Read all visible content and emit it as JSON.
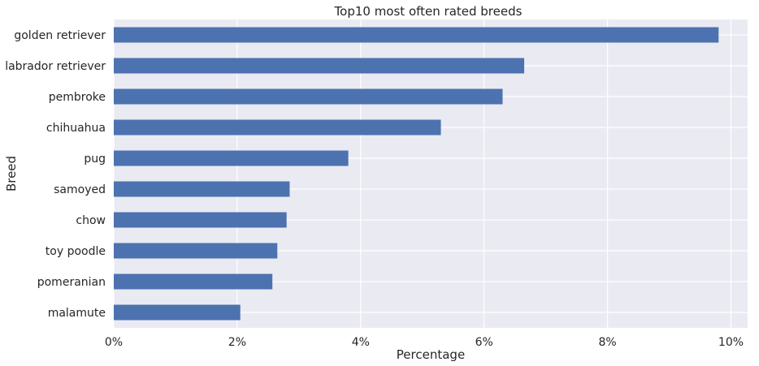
{
  "chart_data": {
    "type": "bar",
    "orientation": "horizontal",
    "title": "Top10 most often rated breeds",
    "xlabel": "Percentage",
    "ylabel": "Breed",
    "categories": [
      "golden retriever",
      "labrador retriever",
      "pembroke",
      "chihuahua",
      "pug",
      "samoyed",
      "chow",
      "toy poodle",
      "pomeranian",
      "malamute"
    ],
    "values": [
      9.8,
      6.65,
      6.3,
      5.3,
      3.8,
      2.85,
      2.8,
      2.65,
      2.57,
      2.05
    ],
    "xlim": [
      0,
      10.27
    ],
    "xticks": [
      0,
      2,
      4,
      6,
      8,
      10
    ],
    "xtick_labels": [
      "0%",
      "2%",
      "4%",
      "6%",
      "8%",
      "10%"
    ],
    "grid": true,
    "bar_color": "#4c72b0",
    "background_color": "#eaeaf2",
    "grid_color": "#ffffff"
  }
}
